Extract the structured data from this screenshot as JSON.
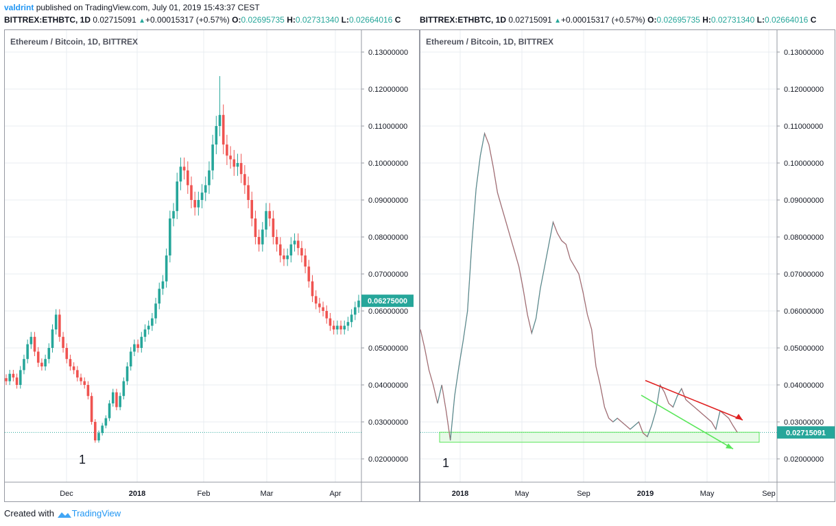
{
  "header": {
    "username": "valdrint",
    "published_text": "published on TradingView.com, July 01, 2019 15:43:37 CEST"
  },
  "symbol_bar": {
    "symbol": "BITTREX:ETHBTC, 1D",
    "last": "0.02715091",
    "arrow": "▲",
    "change": "+0.00015317 (+0.57%)",
    "o_label": "O:",
    "o": "0.02695735",
    "h_label": "H:",
    "h": "0.02731340",
    "l_label": "L:",
    "l": "0.02664016",
    "c_label": "C"
  },
  "footer": {
    "created_with": "Created with",
    "brand": "TradingView"
  },
  "colors": {
    "up": "#26a69a",
    "down": "#ef5350",
    "wick_up": "#26a69a",
    "line_right": "#787b86",
    "grid": "#e9ecf1",
    "red_trend": "#e02020",
    "green_trend": "#5ae65a",
    "brand": "#2196f3"
  },
  "icons": [
    "tradingview-logo-icon",
    "up-arrow-icon"
  ],
  "chart_data": [
    {
      "type": "candlestick",
      "title": "Ethereum / Bitcoin, 1D, BITTREX",
      "x_ticks": [
        "Dec",
        "2018",
        "Feb",
        "Mar",
        "Apr"
      ],
      "y_ticks": [
        "0.13000000",
        "0.12000000",
        "0.11000000",
        "0.10000000",
        "0.09000000",
        "0.08000000",
        "0.07000000",
        "0.06000000",
        "0.05000000",
        "0.04000000",
        "0.03000000",
        "0.02000000"
      ],
      "ylim": [
        0.016,
        0.134
      ],
      "price_label": "0.06275000",
      "annotation": "1",
      "reference_line": 0.02715,
      "series": [
        0.041,
        0.043,
        0.042,
        0.04,
        0.044,
        0.047,
        0.051,
        0.053,
        0.049,
        0.046,
        0.045,
        0.047,
        0.05,
        0.055,
        0.059,
        0.053,
        0.05,
        0.047,
        0.045,
        0.044,
        0.042,
        0.041,
        0.04,
        0.037,
        0.03,
        0.025,
        0.027,
        0.029,
        0.031,
        0.035,
        0.038,
        0.034,
        0.037,
        0.041,
        0.045,
        0.049,
        0.051,
        0.05,
        0.053,
        0.055,
        0.056,
        0.058,
        0.062,
        0.066,
        0.068,
        0.075,
        0.085,
        0.087,
        0.095,
        0.099,
        0.098,
        0.094,
        0.09,
        0.088,
        0.09,
        0.092,
        0.094,
        0.098,
        0.105,
        0.11,
        0.113,
        0.105,
        0.102,
        0.101,
        0.099,
        0.1,
        0.097,
        0.094,
        0.09,
        0.085,
        0.08,
        0.078,
        0.082,
        0.087,
        0.085,
        0.08,
        0.078,
        0.075,
        0.074,
        0.075,
        0.078,
        0.079,
        0.077,
        0.075,
        0.072,
        0.068,
        0.064,
        0.062,
        0.061,
        0.06,
        0.058,
        0.056,
        0.055,
        0.056,
        0.055,
        0.056,
        0.057,
        0.059,
        0.061,
        0.0628
      ]
    },
    {
      "type": "line",
      "title": "Ethereum / Bitcoin, 1D, BITTREX",
      "x_ticks": [
        "2018",
        "May",
        "Sep",
        "2019",
        "May",
        "Sep"
      ],
      "y_ticks": [
        "0.13000000",
        "0.12000000",
        "0.11000000",
        "0.10000000",
        "0.09000000",
        "0.08000000",
        "0.07000000",
        "0.06000000",
        "0.05000000",
        "0.04000000",
        "0.03000000",
        "0.02000000"
      ],
      "ylim": [
        0.016,
        0.134
      ],
      "price_label": "0.02715091",
      "annotation": "1",
      "reference_line": 0.02715,
      "support_zone": [
        0.0245,
        0.0272
      ],
      "series": [
        0.055,
        0.05,
        0.044,
        0.04,
        0.035,
        0.04,
        0.033,
        0.025,
        0.037,
        0.045,
        0.052,
        0.06,
        0.078,
        0.093,
        0.102,
        0.108,
        0.105,
        0.099,
        0.092,
        0.088,
        0.084,
        0.08,
        0.076,
        0.072,
        0.066,
        0.059,
        0.054,
        0.058,
        0.066,
        0.072,
        0.078,
        0.084,
        0.081,
        0.079,
        0.078,
        0.074,
        0.072,
        0.07,
        0.065,
        0.059,
        0.055,
        0.045,
        0.04,
        0.034,
        0.031,
        0.03,
        0.031,
        0.03,
        0.029,
        0.028,
        0.029,
        0.03,
        0.027,
        0.026,
        0.029,
        0.033,
        0.04,
        0.038,
        0.035,
        0.034,
        0.037,
        0.039,
        0.036,
        0.035,
        0.034,
        0.033,
        0.032,
        0.031,
        0.03,
        0.028,
        0.033,
        0.032,
        0.031,
        0.029,
        0.0272
      ],
      "red_trend_label": "",
      "green_trend_label": ""
    }
  ]
}
